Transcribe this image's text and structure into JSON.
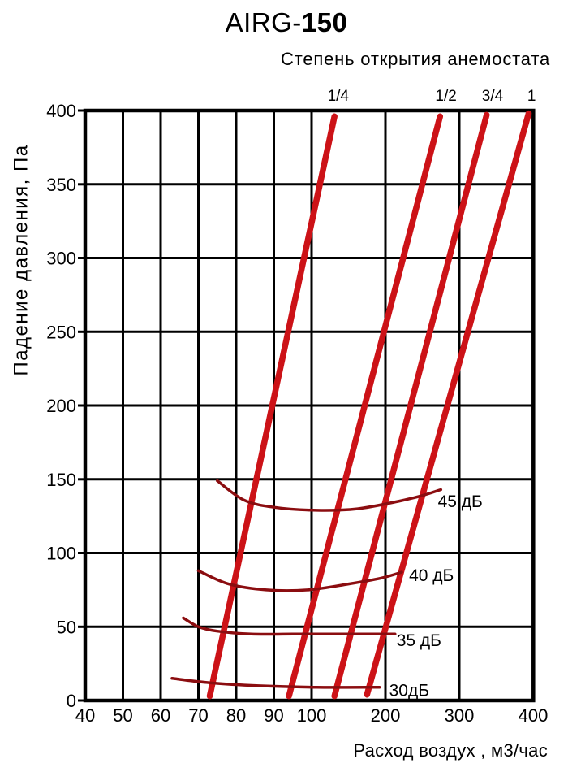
{
  "page": {
    "title_prefix": "AIRG-",
    "title_model": "150",
    "subtitle": "Степень открытия анемостата",
    "x_axis_title": "Расход воздух , м3/час",
    "y_axis_title": "Падение давления, Па"
  },
  "colors": {
    "background": "#ffffff",
    "grid": "#000000",
    "text": "#000000",
    "opening_line_red": "#cc1217",
    "noise_curve_dark_red": "#8b0d10"
  },
  "chart_data": {
    "type": "line",
    "title": "AIRG-150",
    "subtitle": "Степень открытия анемостата",
    "xlabel": "Расход воздух , м3/час",
    "ylabel": "Падение давления, Па",
    "xlim": [
      40,
      400
    ],
    "ylim": [
      0,
      400
    ],
    "x_scale_note": "segmented quasi-log axis: 40..100 in equal steps of 10, then 100..400 in equal steps of 100 (each ~2x wider)",
    "x_ticks": [
      40,
      50,
      60,
      70,
      80,
      90,
      100,
      200,
      300,
      400
    ],
    "y_ticks": [
      0,
      50,
      100,
      150,
      200,
      250,
      300,
      350,
      400
    ],
    "grid": true,
    "legend_position": "inline-labels",
    "units": {
      "x": "м3/час",
      "y": "Па",
      "curves": "дБ"
    },
    "opening_lines": [
      {
        "label": "1/4",
        "label_x": 136,
        "points": [
          [
            73,
            3
          ],
          [
            131,
            396
          ]
        ]
      },
      {
        "label": "1/2",
        "label_x": 282,
        "points": [
          [
            94,
            3
          ],
          [
            274,
            396
          ]
        ]
      },
      {
        "label": "3/4",
        "label_x": 345,
        "points": [
          [
            131,
            3
          ],
          [
            337,
            397
          ]
        ]
      },
      {
        "label": "1",
        "label_x": 398,
        "points": [
          [
            175,
            4
          ],
          [
            394,
            398
          ]
        ]
      }
    ],
    "noise_curves": [
      {
        "label": "45 дБ",
        "label_at": [
          271,
          131
        ],
        "points": [
          [
            75,
            149
          ],
          [
            82,
            136
          ],
          [
            90,
            131
          ],
          [
            107,
            129
          ],
          [
            162,
            130
          ],
          [
            217,
            135
          ],
          [
            250,
            139
          ],
          [
            275,
            143
          ]
        ]
      },
      {
        "label": "40 дБ",
        "label_at": [
          232,
          81
        ],
        "points": [
          [
            70,
            88
          ],
          [
            78,
            79
          ],
          [
            88,
            75
          ],
          [
            99,
            75
          ],
          [
            150,
            79
          ],
          [
            194,
            83
          ],
          [
            222,
            87
          ]
        ]
      },
      {
        "label": "35 дБ",
        "label_at": [
          215,
          37
        ],
        "points": [
          [
            66,
            56
          ],
          [
            70,
            50
          ],
          [
            75,
            47
          ],
          [
            84,
            45
          ],
          [
            95,
            45
          ],
          [
            140,
            45
          ],
          [
            213,
            45
          ]
        ]
      },
      {
        "label": "30дБ",
        "label_at": [
          205,
          3
        ],
        "points": [
          [
            63,
            15
          ],
          [
            73,
            12
          ],
          [
            86,
            10
          ],
          [
            107,
            9
          ],
          [
            192,
            9
          ]
        ]
      }
    ]
  }
}
